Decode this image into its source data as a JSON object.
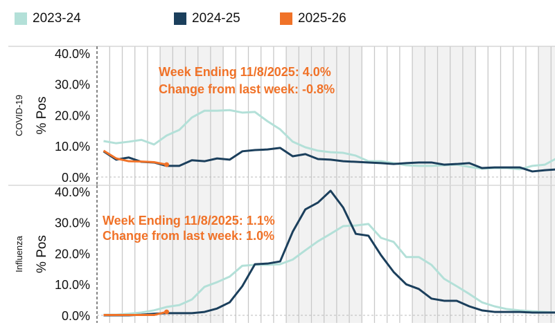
{
  "legend": [
    {
      "label": "2023-24",
      "color": "#b3e0d8"
    },
    {
      "label": "2024-25",
      "color": "#1b3f5c"
    },
    {
      "label": "2025-26",
      "color": "#f07228"
    }
  ],
  "chart_data": [
    {
      "type": "line",
      "panel_label": "COVID-19",
      "ylabel": "% Pos",
      "ylim": [
        0,
        40
      ],
      "yticks": [
        "0.0%",
        "10.0%",
        "20.0%",
        "30.0%",
        "40.0%"
      ],
      "grid": "vertical weekly",
      "annotation": [
        "Week Ending 11/8/2025: 4.0%",
        "Change from last week:  -0.8%"
      ],
      "series": [
        {
          "name": "2023-24",
          "color": "#b3e0d8",
          "values": [
            11.6,
            10.9,
            11.4,
            12.0,
            10.5,
            13.4,
            15.2,
            19.2,
            21.4,
            21.4,
            21.6,
            20.8,
            21.0,
            18.0,
            15.4,
            11.4,
            9.6,
            8.5,
            8.0,
            7.8,
            6.9,
            5.1,
            5.1,
            4.5,
            3.8,
            3.6,
            3.6,
            3.8,
            4.0,
            3.3,
            2.7,
            2.9,
            2.9,
            2.5,
            3.6,
            4.0,
            6.2
          ]
        },
        {
          "name": "2024-25",
          "color": "#1b3f5c",
          "values": [
            8.3,
            5.6,
            6.3,
            4.9,
            4.7,
            3.6,
            3.6,
            5.4,
            5.1,
            6.0,
            5.6,
            8.3,
            8.7,
            8.9,
            9.4,
            6.7,
            7.4,
            5.8,
            5.6,
            5.1,
            4.9,
            4.7,
            4.5,
            4.2,
            4.5,
            4.7,
            4.7,
            4.0,
            4.2,
            4.5,
            2.9,
            3.1,
            3.1,
            3.1,
            1.8,
            2.2,
            2.5
          ]
        },
        {
          "name": "2025-26",
          "color": "#f07228",
          "values": [
            8.5,
            6.0,
            5.1,
            5.0,
            4.8,
            4.0
          ]
        }
      ]
    },
    {
      "type": "line",
      "panel_label": "Influenza",
      "ylabel": "% Pos",
      "ylim": [
        0,
        40
      ],
      "yticks": [
        "0.0%",
        "10.0%",
        "20.0%",
        "30.0%",
        "40.0%"
      ],
      "grid": "vertical weekly",
      "annotation": [
        "Week Ending 11/8/2025: 1.1%",
        "Change from last week:  1.0%"
      ],
      "series": [
        {
          "name": "2023-24",
          "color": "#b3e0d8",
          "values": [
            0.2,
            0.2,
            0.5,
            0.9,
            1.6,
            2.7,
            3.3,
            5.1,
            9.2,
            10.7,
            12.5,
            16.0,
            16.3,
            16.3,
            16.5,
            18.0,
            21.0,
            23.9,
            26.3,
            28.8,
            29.0,
            29.5,
            25.0,
            23.7,
            18.8,
            18.8,
            16.3,
            11.8,
            9.4,
            6.9,
            4.2,
            2.9,
            2.0,
            1.6,
            1.3,
            1.1,
            0.9
          ]
        },
        {
          "name": "2024-25",
          "color": "#1b3f5c",
          "values": [
            0.0,
            0.0,
            0.0,
            0.2,
            0.5,
            0.7,
            0.7,
            0.7,
            1.1,
            2.2,
            4.2,
            9.4,
            16.5,
            16.7,
            17.4,
            27.0,
            34.2,
            36.4,
            40.2,
            34.8,
            26.3,
            25.7,
            19.4,
            14.0,
            10.0,
            8.5,
            5.4,
            4.7,
            4.7,
            2.9,
            1.6,
            1.1,
            1.1,
            1.1,
            0.9,
            0.9,
            0.9
          ]
        },
        {
          "name": "2025-26",
          "color": "#f07228",
          "values": [
            0.1,
            0.1,
            0.1,
            0.1,
            0.1,
            1.1
          ]
        }
      ]
    }
  ]
}
